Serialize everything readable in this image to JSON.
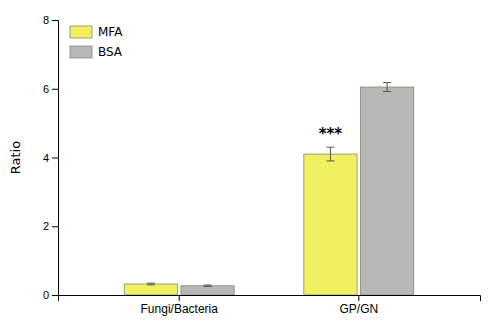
{
  "chart_data": {
    "type": "bar",
    "categories": [
      "Fungi/Bacteria",
      "GP/GN"
    ],
    "series": [
      {
        "name": "MFA",
        "color": "#f0f060",
        "values": [
          0.32,
          4.1
        ],
        "errors": [
          0.025,
          0.2
        ]
      },
      {
        "name": "BSA",
        "color": "#b8b8b8",
        "values": [
          0.27,
          6.05
        ],
        "errors": [
          0.02,
          0.13
        ]
      }
    ],
    "ylabel": "Ratio",
    "ylim": [
      0,
      8
    ],
    "yticks": [
      0,
      2,
      4,
      6,
      8
    ],
    "legend": "upper left",
    "annotations": [
      {
        "text": "***",
        "category": "GP/GN",
        "series": "MFA"
      }
    ]
  }
}
